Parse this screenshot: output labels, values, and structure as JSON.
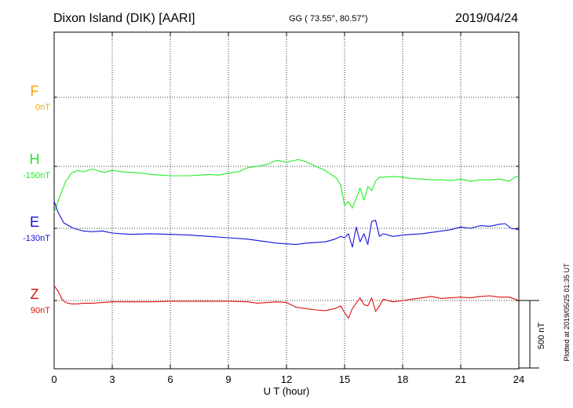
{
  "header": {
    "station": "Dixon Island (DIK)  [AARI]",
    "coords": "GG ( 73.55°,  80.57°)",
    "date": "2019/04/24"
  },
  "footer": {
    "xlabel": "U T (hour)",
    "plotted": "Plotted at 2019/05/25 01:35 UT",
    "scale_label": "500 nT"
  },
  "chart_data": {
    "type": "line",
    "xlabel": "U T (hour)",
    "xlim": [
      0,
      24
    ],
    "xticks": [
      "0",
      "3",
      "6",
      "9",
      "12",
      "15",
      "18",
      "21",
      "24"
    ],
    "grid": "dotted",
    "scale_bar_nT": 500,
    "series": [
      {
        "name": "F",
        "baseline_label": "0nT",
        "color": "#f5a400",
        "x": [],
        "values": []
      },
      {
        "name": "H",
        "baseline_label": "-150nT",
        "color": "#22ee22",
        "x": [
          0,
          0.3,
          0.6,
          0.9,
          1.2,
          1.5,
          2.0,
          2.3,
          2.6,
          3.0,
          3.5,
          4.0,
          4.5,
          5.0,
          5.5,
          6.0,
          6.5,
          7.0,
          7.5,
          8.0,
          8.5,
          9.0,
          9.5,
          10.0,
          10.5,
          11.0,
          11.5,
          12.0,
          12.3,
          12.6,
          13.0,
          13.5,
          14.0,
          14.3,
          14.6,
          14.8,
          15.0,
          15.2,
          15.4,
          15.6,
          15.8,
          16.0,
          16.2,
          16.4,
          16.6,
          16.8,
          17.0,
          17.5,
          18.0,
          18.5,
          19.0,
          19.5,
          20.0,
          20.5,
          21.0,
          21.5,
          22.0,
          22.5,
          23.0,
          23.5,
          23.8,
          24.0
        ],
        "values": [
          -340,
          -220,
          -110,
          -50,
          -30,
          -40,
          -20,
          -35,
          -45,
          -30,
          -40,
          -45,
          -50,
          -60,
          -65,
          -70,
          -70,
          -70,
          -65,
          -60,
          -65,
          -50,
          -40,
          -10,
          0,
          15,
          45,
          30,
          40,
          50,
          35,
          0,
          -30,
          -60,
          -90,
          -140,
          -290,
          -260,
          -310,
          -240,
          -160,
          -250,
          -150,
          -180,
          -110,
          -80,
          -80,
          -75,
          -80,
          -90,
          -95,
          -100,
          -100,
          -105,
          -95,
          -110,
          -100,
          -100,
          -95,
          -110,
          -80,
          -70
        ]
      },
      {
        "name": "E",
        "baseline_label": "-130nT",
        "color": "#1010dd",
        "x": [
          0,
          0.2,
          0.5,
          1.0,
          1.5,
          2.0,
          2.5,
          3.0,
          3.5,
          4.0,
          5.0,
          6.0,
          7.0,
          8.0,
          9.0,
          10.0,
          11.0,
          11.5,
          12.0,
          12.5,
          13.0,
          13.5,
          14.0,
          14.5,
          14.8,
          15.0,
          15.2,
          15.4,
          15.6,
          15.8,
          16.0,
          16.2,
          16.4,
          16.6,
          16.8,
          17.0,
          17.5,
          18.0,
          18.5,
          19.0,
          19.5,
          20.0,
          20.5,
          21.0,
          21.5,
          22.0,
          22.5,
          23.0,
          23.3,
          23.6,
          24.0
        ],
        "values": [
          200,
          120,
          40,
          0,
          -20,
          -25,
          -20,
          -35,
          -40,
          -45,
          -40,
          -45,
          -50,
          -60,
          -70,
          -80,
          -100,
          -110,
          -115,
          -120,
          -110,
          -105,
          -100,
          -80,
          -60,
          -70,
          -40,
          -140,
          10,
          -100,
          -40,
          -120,
          50,
          60,
          -60,
          -40,
          -60,
          -50,
          -45,
          -40,
          -30,
          -20,
          -10,
          10,
          0,
          20,
          15,
          30,
          35,
          0,
          -10
        ]
      },
      {
        "name": "Z",
        "baseline_label": "90nT",
        "color": "#dd1010",
        "x": [
          0,
          0.2,
          0.4,
          0.6,
          0.9,
          1.2,
          1.5,
          2.0,
          3.0,
          4.0,
          5.0,
          6.0,
          7.0,
          8.0,
          9.0,
          10.0,
          10.5,
          11.0,
          11.5,
          12.0,
          12.5,
          13.0,
          13.5,
          14.0,
          14.5,
          14.8,
          15.0,
          15.2,
          15.4,
          15.6,
          15.8,
          16.0,
          16.2,
          16.4,
          16.6,
          16.8,
          17.0,
          17.5,
          18.0,
          18.5,
          19.0,
          19.5,
          20.0,
          20.5,
          21.0,
          21.5,
          22.0,
          22.5,
          23.0,
          23.5,
          24.0
        ],
        "values": [
          110,
          70,
          10,
          -15,
          -25,
          -25,
          -20,
          -20,
          -10,
          -10,
          -10,
          -5,
          -5,
          -5,
          -5,
          -10,
          -20,
          -15,
          -10,
          -15,
          -50,
          -60,
          -70,
          -75,
          -60,
          -40,
          -90,
          -130,
          -60,
          -20,
          20,
          -30,
          -40,
          20,
          -80,
          -40,
          10,
          -10,
          0,
          10,
          20,
          30,
          15,
          20,
          25,
          20,
          30,
          35,
          25,
          25,
          0
        ]
      }
    ]
  }
}
